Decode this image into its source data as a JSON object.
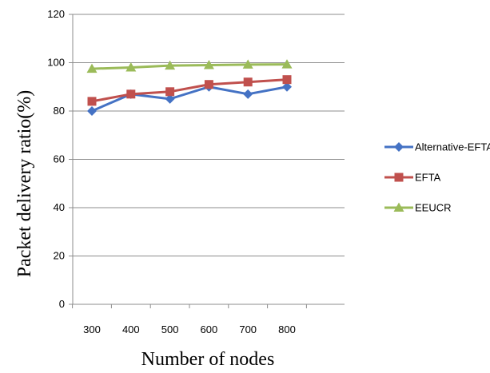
{
  "chart_data": {
    "type": "line",
    "title": "",
    "xlabel": "Number of nodes",
    "ylabel": "Packet delivery ratio(%)",
    "categories": [
      "300",
      "400",
      "500",
      "600",
      "700",
      "800"
    ],
    "ylim": [
      0,
      120
    ],
    "yticks": [
      0,
      20,
      40,
      60,
      80,
      100,
      120
    ],
    "grid": "horizontal",
    "legend_position": "right",
    "series": [
      {
        "name": "Alternative-EFTA",
        "color": "#4472C4",
        "marker": "diamond",
        "values": [
          80,
          87,
          85,
          90,
          87,
          90
        ]
      },
      {
        "name": "EFTA",
        "color": "#C0504D",
        "marker": "square",
        "values": [
          84,
          87,
          88,
          91,
          92,
          93
        ]
      },
      {
        "name": "EEUCR",
        "color": "#9BBB59",
        "marker": "triangle",
        "values": [
          97.5,
          98,
          98.8,
          99,
          99.2,
          99.3
        ]
      }
    ]
  }
}
